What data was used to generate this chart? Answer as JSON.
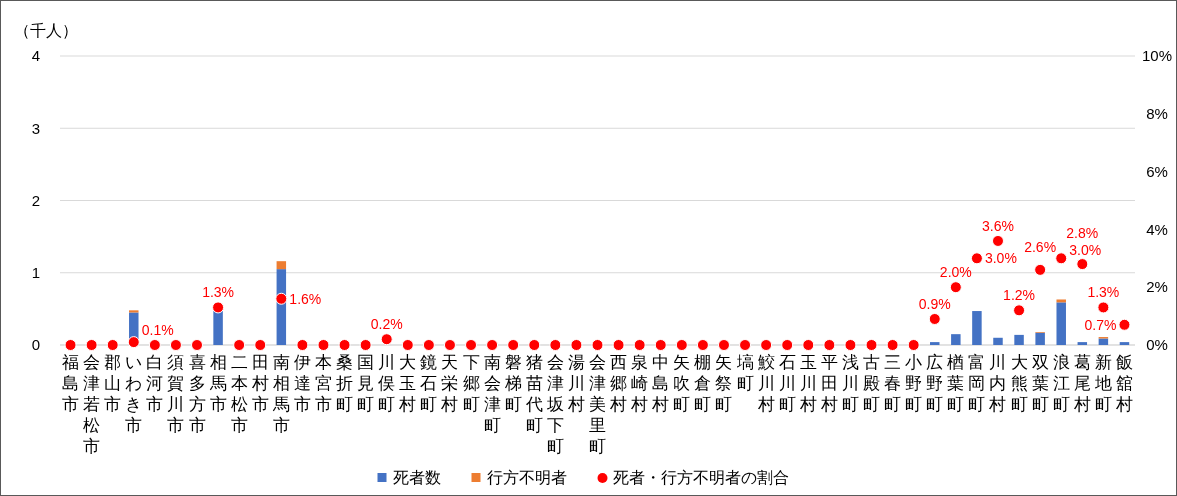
{
  "chart_data": {
    "type": "bar",
    "stacked": true,
    "ylabel": "（千人）",
    "categories": [
      "福島市",
      "会津若松市",
      "郡山市",
      "いわき市",
      "白河市",
      "須賀川市",
      "喜多方市",
      "相馬市",
      "二本松市",
      "田村市",
      "南相馬市",
      "伊達市",
      "本宮市",
      "桑折町",
      "国見町",
      "川俣町",
      "大玉村",
      "鏡石町",
      "天栄村",
      "下郷町",
      "南会津町",
      "磐梯町",
      "猪苗代町",
      "会津坂下町",
      "湯川村",
      "会津美里町",
      "西郷村",
      "泉崎村",
      "中島村",
      "矢吹町",
      "棚倉町",
      "矢祭町",
      "塙町",
      "鮫川村",
      "石川町",
      "玉川村",
      "平田村",
      "浅川町",
      "古殿町",
      "三春町",
      "小野町",
      "広野町",
      "楢葉町",
      "富岡町",
      "川内村",
      "大熊町",
      "双葉町",
      "浪江町",
      "葛尾村",
      "新地町",
      "飯舘村"
    ],
    "series": [
      {
        "name": "死者数",
        "color": "#4472c4",
        "values": [
          0,
          0,
          0,
          0.45,
          0,
          0,
          0,
          0.47,
          0,
          0,
          1.05,
          0,
          0,
          0,
          0,
          0,
          0,
          0,
          0,
          0,
          0,
          0,
          0,
          0,
          0,
          0,
          0,
          0,
          0,
          0,
          0,
          0,
          0,
          0,
          0,
          0,
          0,
          0,
          0,
          0,
          0,
          0.04,
          0.15,
          0.47,
          0.1,
          0.14,
          0.17,
          0.59,
          0.04,
          0.09,
          0.04
        ]
      },
      {
        "name": "行方不明者",
        "color": "#ed7d31",
        "values": [
          0,
          0,
          0,
          0.03,
          0,
          0,
          0,
          0,
          0,
          0,
          0.11,
          0,
          0,
          0,
          0,
          0,
          0,
          0,
          0,
          0,
          0,
          0,
          0,
          0,
          0,
          0,
          0,
          0,
          0,
          0,
          0,
          0,
          0,
          0,
          0,
          0,
          0,
          0,
          0,
          0,
          0,
          0,
          0,
          0,
          0,
          0,
          0.01,
          0.04,
          0,
          0.02,
          0
        ]
      },
      {
        "name": "死者・行方不明者の割合",
        "type": "scatter",
        "axis": "y2",
        "marker": "circle",
        "color": "#ff0000",
        "values": [
          0,
          0,
          0,
          0.1,
          0,
          0,
          0,
          1.3,
          0,
          0,
          1.6,
          0,
          0,
          0,
          0,
          0.2,
          0,
          0,
          0,
          0,
          0,
          0,
          0,
          0,
          0,
          0,
          0,
          0,
          0,
          0,
          0,
          0,
          0,
          0,
          0,
          0,
          0,
          0,
          0,
          0,
          0,
          0.9,
          2.0,
          3.0,
          3.6,
          1.2,
          2.6,
          3.0,
          2.8,
          1.3,
          0.7
        ],
        "value_labels": [
          null,
          null,
          null,
          "0.1%",
          null,
          null,
          null,
          "1.3%",
          null,
          null,
          "1.6%",
          null,
          null,
          null,
          null,
          "0.2%",
          null,
          null,
          null,
          null,
          null,
          null,
          null,
          null,
          null,
          null,
          null,
          null,
          null,
          null,
          null,
          null,
          null,
          null,
          null,
          null,
          null,
          null,
          null,
          null,
          null,
          "0.9%",
          "2.0%",
          "3.0%",
          "3.6%",
          "1.2%",
          "2.6%",
          "3.0%",
          "2.8%",
          "1.3%",
          "0.7%"
        ]
      }
    ],
    "ylim": [
      0,
      4
    ],
    "yticks": [
      0,
      1,
      2,
      3,
      4
    ],
    "y2lim": [
      0,
      10
    ],
    "y2ticks": [
      {
        "value": 0,
        "label": "0%"
      },
      {
        "value": 2,
        "label": "2%"
      },
      {
        "value": 4,
        "label": "4%"
      },
      {
        "value": 6,
        "label": "6%"
      },
      {
        "value": 8,
        "label": "8%"
      },
      {
        "value": 10,
        "label": "10%"
      }
    ],
    "grid": "y",
    "legend": "bottom"
  }
}
